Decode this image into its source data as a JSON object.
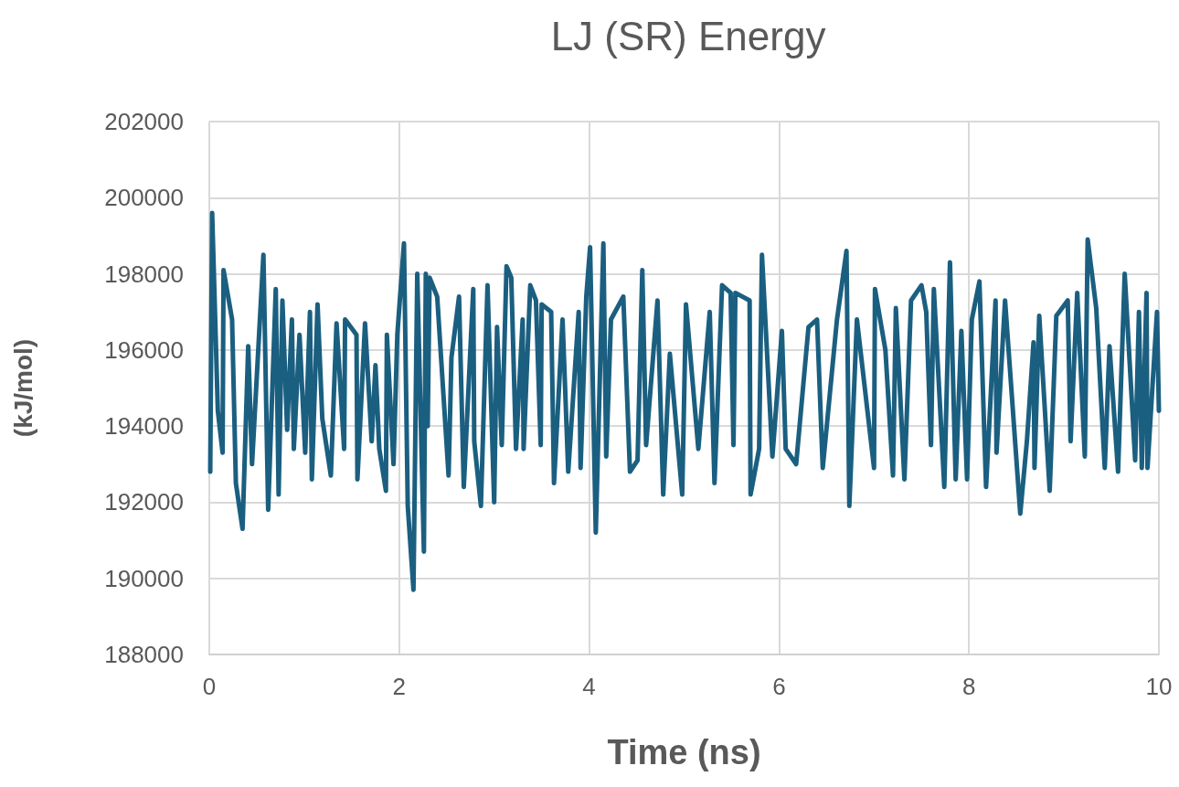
{
  "chart_data": {
    "type": "line",
    "title": "LJ (SR) Energy",
    "xlabel": "Time (ns)",
    "ylabel": "(kJ/mol)",
    "x": [
      0.01,
      0.03,
      0.09,
      0.14,
      0.15,
      0.24,
      0.28,
      0.35,
      0.41,
      0.45,
      0.57,
      0.62,
      0.7,
      0.73,
      0.77,
      0.82,
      0.87,
      0.89,
      0.95,
      1.01,
      1.06,
      1.08,
      1.14,
      1.19,
      1.28,
      1.34,
      1.42,
      1.43,
      1.55,
      1.56,
      1.64,
      1.71,
      1.75,
      1.79,
      1.86,
      1.87,
      1.94,
      1.98,
      2.05,
      2.09,
      2.15,
      2.19,
      2.26,
      2.28,
      2.3,
      2.32,
      2.4,
      2.52,
      2.55,
      2.63,
      2.68,
      2.78,
      2.79,
      2.86,
      2.93,
      3.0,
      3.03,
      3.08,
      3.13,
      3.18,
      3.23,
      3.3,
      3.31,
      3.38,
      3.44,
      3.49,
      3.5,
      3.6,
      3.63,
      3.72,
      3.78,
      3.89,
      3.91,
      3.97,
      4.01,
      4.07,
      4.15,
      4.18,
      4.23,
      4.36,
      4.43,
      4.51,
      4.56,
      4.6,
      4.72,
      4.78,
      4.85,
      4.98,
      5.02,
      5.15,
      5.27,
      5.32,
      5.4,
      5.49,
      5.52,
      5.54,
      5.69,
      5.7,
      5.79,
      5.82,
      5.93,
      6.03,
      6.07,
      6.18,
      6.31,
      6.4,
      6.46,
      6.61,
      6.71,
      6.74,
      6.82,
      7.0,
      7.01,
      7.12,
      7.2,
      7.23,
      7.32,
      7.39,
      7.5,
      7.55,
      7.6,
      7.63,
      7.74,
      7.8,
      7.86,
      7.92,
      7.98,
      8.03,
      8.11,
      8.18,
      8.28,
      8.29,
      8.38,
      8.54,
      8.61,
      8.68,
      8.69,
      8.74,
      8.85,
      8.92,
      9.04,
      9.07,
      9.14,
      9.22,
      9.25,
      9.34,
      9.43,
      9.48,
      9.57,
      9.64,
      9.75,
      9.79,
      9.82,
      9.87,
      9.88,
      9.98,
      10.0
    ],
    "series": [
      {
        "color": "#1b5f80",
        "values": [
          192800,
          199600,
          194400,
          193300,
          198100,
          196800,
          192500,
          191300,
          196100,
          193000,
          198500,
          191800,
          197600,
          192200,
          197300,
          193900,
          196800,
          193400,
          196400,
          193300,
          197000,
          192600,
          197200,
          194200,
          192700,
          196700,
          193400,
          196800,
          196400,
          192600,
          196700,
          193600,
          195600,
          193400,
          192300,
          196400,
          193000,
          196400,
          198800,
          191900,
          189700,
          198000,
          190700,
          198000,
          194000,
          197900,
          197400,
          192700,
          195800,
          197400,
          192400,
          197600,
          193600,
          191900,
          197700,
          192000,
          196600,
          193500,
          198200,
          197900,
          193400,
          196800,
          193400,
          197700,
          197300,
          193500,
          197200,
          197000,
          192500,
          196800,
          192800,
          197000,
          192900,
          197400,
          198700,
          191200,
          198800,
          193200,
          196800,
          197400,
          192800,
          193100,
          198100,
          193500,
          197300,
          192200,
          195900,
          192200,
          197200,
          193400,
          197000,
          192500,
          197700,
          197500,
          193500,
          197500,
          197300,
          192200,
          193400,
          198500,
          193200,
          196500,
          193400,
          193000,
          196600,
          196800,
          192900,
          196800,
          198600,
          191900,
          196800,
          192900,
          197600,
          196000,
          192700,
          197100,
          192600,
          197300,
          197700,
          197000,
          193500,
          197600,
          192400,
          198300,
          192600,
          196500,
          192600,
          196800,
          197800,
          192400,
          197300,
          193300,
          197300,
          191700,
          193600,
          196200,
          192900,
          196900,
          192300,
          196900,
          197300,
          193600,
          197500,
          193200,
          198900,
          197100,
          192900,
          196100,
          192800,
          198000,
          193100,
          197000,
          192900,
          197500,
          192900,
          197000,
          194400
        ]
      }
    ],
    "xlim": [
      0,
      10
    ],
    "xticks": [
      0,
      2,
      4,
      6,
      8,
      10
    ],
    "ylim": [
      188000,
      202000
    ],
    "yticks": [
      188000,
      190000,
      192000,
      194000,
      196000,
      198000,
      200000,
      202000
    ],
    "grid": true,
    "marker": "none",
    "line_style": "solid"
  }
}
